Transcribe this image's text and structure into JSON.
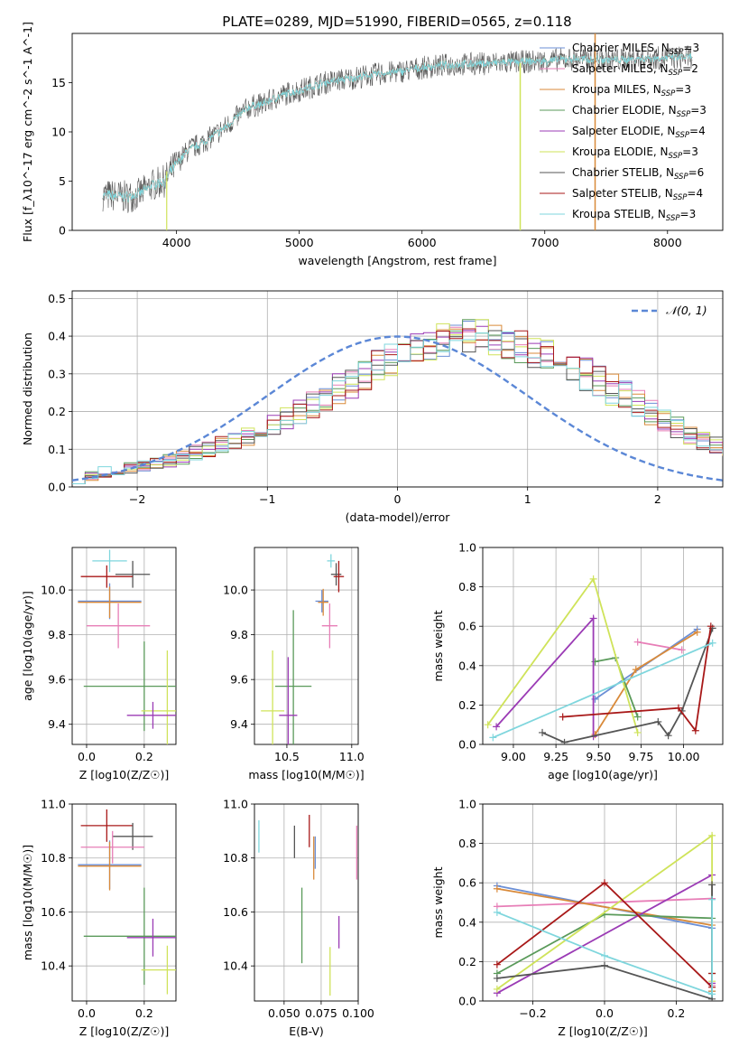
{
  "figure": {
    "title": "PLATE=0289, MJD=51990, FIBERID=0565, z=0.118",
    "models": [
      {
        "name": "Chabrier MILES",
        "nssp": "3",
        "color": "#6b8fd6"
      },
      {
        "name": "Salpeter MILES",
        "nssp": "2",
        "color": "#e77eb7"
      },
      {
        "name": "Kroupa MILES",
        "nssp": "3",
        "color": "#d98a3a"
      },
      {
        "name": "Chabrier ELODIE",
        "nssp": "3",
        "color": "#5a9a5a"
      },
      {
        "name": "Salpeter ELODIE",
        "nssp": "4",
        "color": "#9b3bb5"
      },
      {
        "name": "Kroupa ELODIE",
        "nssp": "3",
        "color": "#cfe35a"
      },
      {
        "name": "Chabrier STELIB",
        "nssp": "6",
        "color": "#555555"
      },
      {
        "name": "Salpeter STELIB",
        "nssp": "4",
        "color": "#a81818"
      },
      {
        "name": "Kroupa STELIB",
        "nssp": "3",
        "color": "#7fd6dd"
      }
    ]
  },
  "chart_data": [
    {
      "id": "spectrum",
      "type": "line",
      "xlabel": "wavelength [Angstrom, rest frame]",
      "ylabel": "Flux [f_λ10^-17 erg cm^-2 s^-1 A^-1]",
      "xlim": [
        3150,
        8450
      ],
      "ylim": [
        0,
        20
      ],
      "xticks": [
        4000,
        5000,
        6000,
        7000,
        8000
      ],
      "yticks": [
        0,
        5,
        10,
        15
      ],
      "grid": false,
      "legend": "right",
      "continuum": {
        "x": [
          3400,
          3500,
          3600,
          3700,
          3800,
          3900,
          4000,
          4100,
          4200,
          4300,
          4400,
          4500,
          4600,
          4700,
          4800,
          4900,
          5000,
          5200,
          5400,
          5600,
          5800,
          6000,
          6200,
          6400,
          6600,
          6800,
          7000,
          7200,
          7400,
          7600,
          7800,
          8000,
          8200
        ],
        "y": [
          3.6,
          3.5,
          3.4,
          3.7,
          4.6,
          5.0,
          6.8,
          8.2,
          8.8,
          9.6,
          10.5,
          11.6,
          12.6,
          12.8,
          13.4,
          13.9,
          14.2,
          15.0,
          15.4,
          15.8,
          16.1,
          16.5,
          16.8,
          16.9,
          17.0,
          17.1,
          17.2,
          17.4,
          17.4,
          17.3,
          17.5,
          17.5,
          17.6
        ]
      }
    },
    {
      "id": "residuals",
      "type": "area",
      "xlabel": "(data-model)/error",
      "ylabel": "Normed distribution",
      "xlim": [
        -2.5,
        2.5
      ],
      "ylim": [
        0,
        0.52
      ],
      "xticks": [
        -2,
        -1,
        0,
        1,
        2
      ],
      "yticks": [
        0.0,
        0.1,
        0.2,
        0.3,
        0.4,
        0.5
      ],
      "grid": true,
      "legend": "top-right",
      "gaussian_label": "𝒩(0, 1)",
      "bin_width": 0.1,
      "histogram_mean": [
        0.02,
        0.03,
        0.04,
        0.045,
        0.05,
        0.055,
        0.06,
        0.07,
        0.08,
        0.09,
        0.1,
        0.11,
        0.12,
        0.135,
        0.15,
        0.165,
        0.18,
        0.2,
        0.22,
        0.24,
        0.26,
        0.28,
        0.3,
        0.32,
        0.34,
        0.36,
        0.37,
        0.38,
        0.39,
        0.4,
        0.4,
        0.4,
        0.39,
        0.38,
        0.37,
        0.36,
        0.35,
        0.34,
        0.32,
        0.3,
        0.28,
        0.26,
        0.24,
        0.22,
        0.2,
        0.18,
        0.16,
        0.14,
        0.12,
        0.11,
        0.1,
        0.09,
        0.08,
        0.07,
        0.06,
        0.055,
        0.05,
        0.04,
        0.035,
        0.03
      ]
    },
    {
      "id": "age-vs-Z",
      "type": "scatter",
      "xlabel": "Z [log10(Z/Z☉)]",
      "ylabel": "age [log10(age/yr)]",
      "xlim": [
        -0.05,
        0.31
      ],
      "ylim": [
        9.31,
        10.19
      ],
      "xticks": [
        0.0,
        0.2
      ],
      "yticks": [
        9.4,
        9.6,
        9.8,
        10.0
      ],
      "grid": true,
      "points": [
        {
          "x": 0.08,
          "y": 10.13,
          "xe": 0.06,
          "ye": 0.05,
          "model": 8
        },
        {
          "x": 0.16,
          "y": 10.07,
          "xe": 0.06,
          "ye": 0.06,
          "model": 6
        },
        {
          "x": 0.07,
          "y": 10.06,
          "xe": 0.09,
          "ye": 0.05,
          "model": 7
        },
        {
          "x": 0.08,
          "y": 9.95,
          "xe": 0.11,
          "ye": 0.08,
          "model": 0
        },
        {
          "x": 0.08,
          "y": 9.945,
          "xe": 0.11,
          "ye": 0.07,
          "model": 2
        },
        {
          "x": 0.11,
          "y": 9.84,
          "xe": 0.11,
          "ye": 0.1,
          "model": 1
        },
        {
          "x": 0.2,
          "y": 9.57,
          "xe": 0.21,
          "ye": 0.2,
          "model": 3
        },
        {
          "x": 0.28,
          "y": 9.46,
          "xe": 0.09,
          "ye": 0.27,
          "model": 5
        },
        {
          "x": 0.23,
          "y": 9.44,
          "xe": 0.09,
          "ye": 0.06,
          "model": 4
        }
      ]
    },
    {
      "id": "age-vs-mass",
      "type": "scatter",
      "xlabel": "mass [log10(M/M☉)]",
      "ylabel": "",
      "xlim": [
        10.25,
        11.05
      ],
      "ylim": [
        9.31,
        10.19
      ],
      "xticks": [
        10.5,
        11.0
      ],
      "yticks": [
        9.4,
        9.6,
        9.8,
        10.0
      ],
      "grid": true,
      "points": [
        {
          "x": 10.84,
          "y": 10.13,
          "xe": 0.03,
          "ye": 0.03,
          "model": 8
        },
        {
          "x": 10.88,
          "y": 10.07,
          "xe": 0.04,
          "ye": 0.05,
          "model": 6
        },
        {
          "x": 10.9,
          "y": 10.06,
          "xe": 0.04,
          "ye": 0.07,
          "model": 7
        },
        {
          "x": 10.77,
          "y": 9.95,
          "xe": 0.05,
          "ye": 0.05,
          "model": 0
        },
        {
          "x": 10.78,
          "y": 9.945,
          "xe": 0.04,
          "ye": 0.06,
          "model": 2
        },
        {
          "x": 10.83,
          "y": 9.84,
          "xe": 0.06,
          "ye": 0.1,
          "model": 1
        },
        {
          "x": 10.55,
          "y": 9.57,
          "xe": 0.14,
          "ye": 0.34,
          "model": 3
        },
        {
          "x": 10.39,
          "y": 9.46,
          "xe": 0.09,
          "ye": 0.27,
          "model": 5
        },
        {
          "x": 10.51,
          "y": 9.44,
          "xe": 0.07,
          "ye": 0.26,
          "model": 4
        }
      ]
    },
    {
      "id": "weight-vs-age",
      "type": "line",
      "xlabel": "age  [log10(age/yr)]",
      "ylabel": "mass weight",
      "xlim": [
        8.82,
        10.23
      ],
      "ylim": [
        0,
        1
      ],
      "xticks": [
        9.0,
        9.25,
        9.5,
        9.75,
        10.0
      ],
      "yticks": [
        0.0,
        0.2,
        0.4,
        0.6,
        0.8,
        1.0
      ],
      "grid": true,
      "series": [
        {
          "model": 0,
          "x": [
            9.48,
            10.08
          ],
          "y": [
            0.23,
            0.585
          ]
        },
        {
          "model": 1,
          "x": [
            9.73,
            9.99
          ],
          "y": [
            0.52,
            0.48
          ]
        },
        {
          "model": 2,
          "x": [
            9.48,
            9.72,
            10.08
          ],
          "y": [
            0.05,
            0.38,
            0.57
          ]
        },
        {
          "model": 3,
          "x": [
            9.48,
            9.6,
            9.73
          ],
          "y": [
            0.42,
            0.44,
            0.14
          ]
        },
        {
          "model": 4,
          "x": [
            8.9,
            9.47,
            9.47
          ],
          "y": [
            0.09,
            0.64,
            0.04
          ]
        },
        {
          "model": 5,
          "x": [
            8.85,
            9.47,
            9.73
          ],
          "y": [
            0.1,
            0.84,
            0.06
          ]
        },
        {
          "model": 6,
          "x": [
            9.17,
            9.3,
            9.85,
            9.91,
            9.99,
            10.17
          ],
          "y": [
            0.06,
            0.01,
            0.115,
            0.045,
            0.17,
            0.59
          ]
        },
        {
          "model": 7,
          "x": [
            9.29,
            9.97,
            10.07,
            10.16
          ],
          "y": [
            0.14,
            0.185,
            0.07,
            0.6
          ]
        },
        {
          "model": 8,
          "x": [
            8.88,
            10.17
          ],
          "y": [
            0.035,
            0.515
          ]
        }
      ]
    },
    {
      "id": "mass-vs-Z",
      "type": "scatter",
      "xlabel": "Z [log10(Z/Z☉)]",
      "ylabel": "mass [log10(M/M☉)]",
      "xlim": [
        -0.05,
        0.31
      ],
      "ylim": [
        10.27,
        11.0
      ],
      "xticks": [
        0.0,
        0.2
      ],
      "yticks": [
        10.4,
        10.6,
        10.8,
        11.0
      ],
      "grid": true,
      "points": [
        {
          "x": 0.07,
          "y": 10.92,
          "xe": 0.09,
          "ye": 0.06,
          "model": 7
        },
        {
          "x": 0.16,
          "y": 10.88,
          "xe": 0.07,
          "ye": 0.05,
          "model": 6
        },
        {
          "x": 0.09,
          "y": 10.84,
          "xe": 0.11,
          "ye": 0.06,
          "model": 1
        },
        {
          "x": 0.08,
          "y": 10.775,
          "xe": 0.11,
          "ye": 0.09,
          "model": 0
        },
        {
          "x": 0.08,
          "y": 10.77,
          "xe": 0.11,
          "ye": 0.09,
          "model": 2
        },
        {
          "x": 0.2,
          "y": 10.51,
          "xe": 0.21,
          "ye": 0.18,
          "model": 3
        },
        {
          "x": 0.23,
          "y": 10.505,
          "xe": 0.09,
          "ye": 0.07,
          "model": 4
        },
        {
          "x": 0.28,
          "y": 10.385,
          "xe": 0.09,
          "ye": 0.09,
          "model": 5
        }
      ]
    },
    {
      "id": "mass-vs-ebv",
      "type": "scatter",
      "xlabel": "E(B-V)",
      "ylabel": "",
      "xlim": [
        0.03,
        0.1
      ],
      "ylim": [
        10.27,
        11.0
      ],
      "xticks": [
        0.05,
        0.075,
        0.1
      ],
      "yticks": [
        10.4,
        10.6,
        10.8,
        11.0
      ],
      "grid": true,
      "points": [
        {
          "x": 0.033,
          "y": 10.88,
          "ye": 0.06,
          "model": 8
        },
        {
          "x": 0.057,
          "y": 10.86,
          "ye": 0.06,
          "model": 6
        },
        {
          "x": 0.067,
          "y": 10.9,
          "ye": 0.06,
          "model": 7
        },
        {
          "x": 0.07,
          "y": 10.8,
          "ye": 0.08,
          "model": 2
        },
        {
          "x": 0.071,
          "y": 10.82,
          "ye": 0.06,
          "model": 0
        },
        {
          "x": 0.099,
          "y": 10.82,
          "ye": 0.1,
          "model": 1
        },
        {
          "x": 0.062,
          "y": 10.55,
          "ye": 0.14,
          "model": 3
        },
        {
          "x": 0.087,
          "y": 10.525,
          "ye": 0.06,
          "model": 4
        },
        {
          "x": 0.081,
          "y": 10.38,
          "ye": 0.09,
          "model": 5
        }
      ]
    },
    {
      "id": "weight-vs-Z",
      "type": "line",
      "xlabel": "Z [log10(Z/Z☉)]",
      "ylabel": "mass weight",
      "xlim": [
        -0.34,
        0.33
      ],
      "ylim": [
        0,
        1
      ],
      "xticks": [
        -0.2,
        0.0,
        0.2
      ],
      "yticks": [
        0.0,
        0.2,
        0.4,
        0.6,
        0.8,
        1.0
      ],
      "grid": true,
      "series": [
        {
          "model": 0,
          "x": [
            -0.3,
            0.3,
            0.3
          ],
          "y": [
            0.585,
            0.37,
            0.05
          ]
        },
        {
          "model": 1,
          "x": [
            -0.3,
            0.3,
            0.3
          ],
          "y": [
            0.48,
            0.52,
            0.08
          ]
        },
        {
          "model": 2,
          "x": [
            -0.3,
            0.3,
            0.3
          ],
          "y": [
            0.57,
            0.385,
            0.05
          ]
        },
        {
          "model": 3,
          "x": [
            -0.3,
            0.0,
            0.3,
            0.3
          ],
          "y": [
            0.14,
            0.44,
            0.42,
            0.14
          ]
        },
        {
          "model": 4,
          "x": [
            -0.3,
            0.3,
            0.3
          ],
          "y": [
            0.04,
            0.64,
            0.09
          ]
        },
        {
          "model": 5,
          "x": [
            -0.3,
            0.3,
            0.3
          ],
          "y": [
            0.06,
            0.84,
            0.1
          ]
        },
        {
          "model": 6,
          "x": [
            -0.3,
            0.0,
            0.3,
            0.3
          ],
          "y": [
            0.115,
            0.18,
            0.01,
            0.59
          ]
        },
        {
          "model": 7,
          "x": [
            -0.3,
            0.0,
            0.3,
            0.3
          ],
          "y": [
            0.185,
            0.6,
            0.07,
            0.14
          ]
        },
        {
          "model": 8,
          "x": [
            -0.3,
            0.0,
            0.3,
            0.3
          ],
          "y": [
            0.45,
            0.23,
            0.035,
            0.515
          ]
        }
      ]
    }
  ]
}
